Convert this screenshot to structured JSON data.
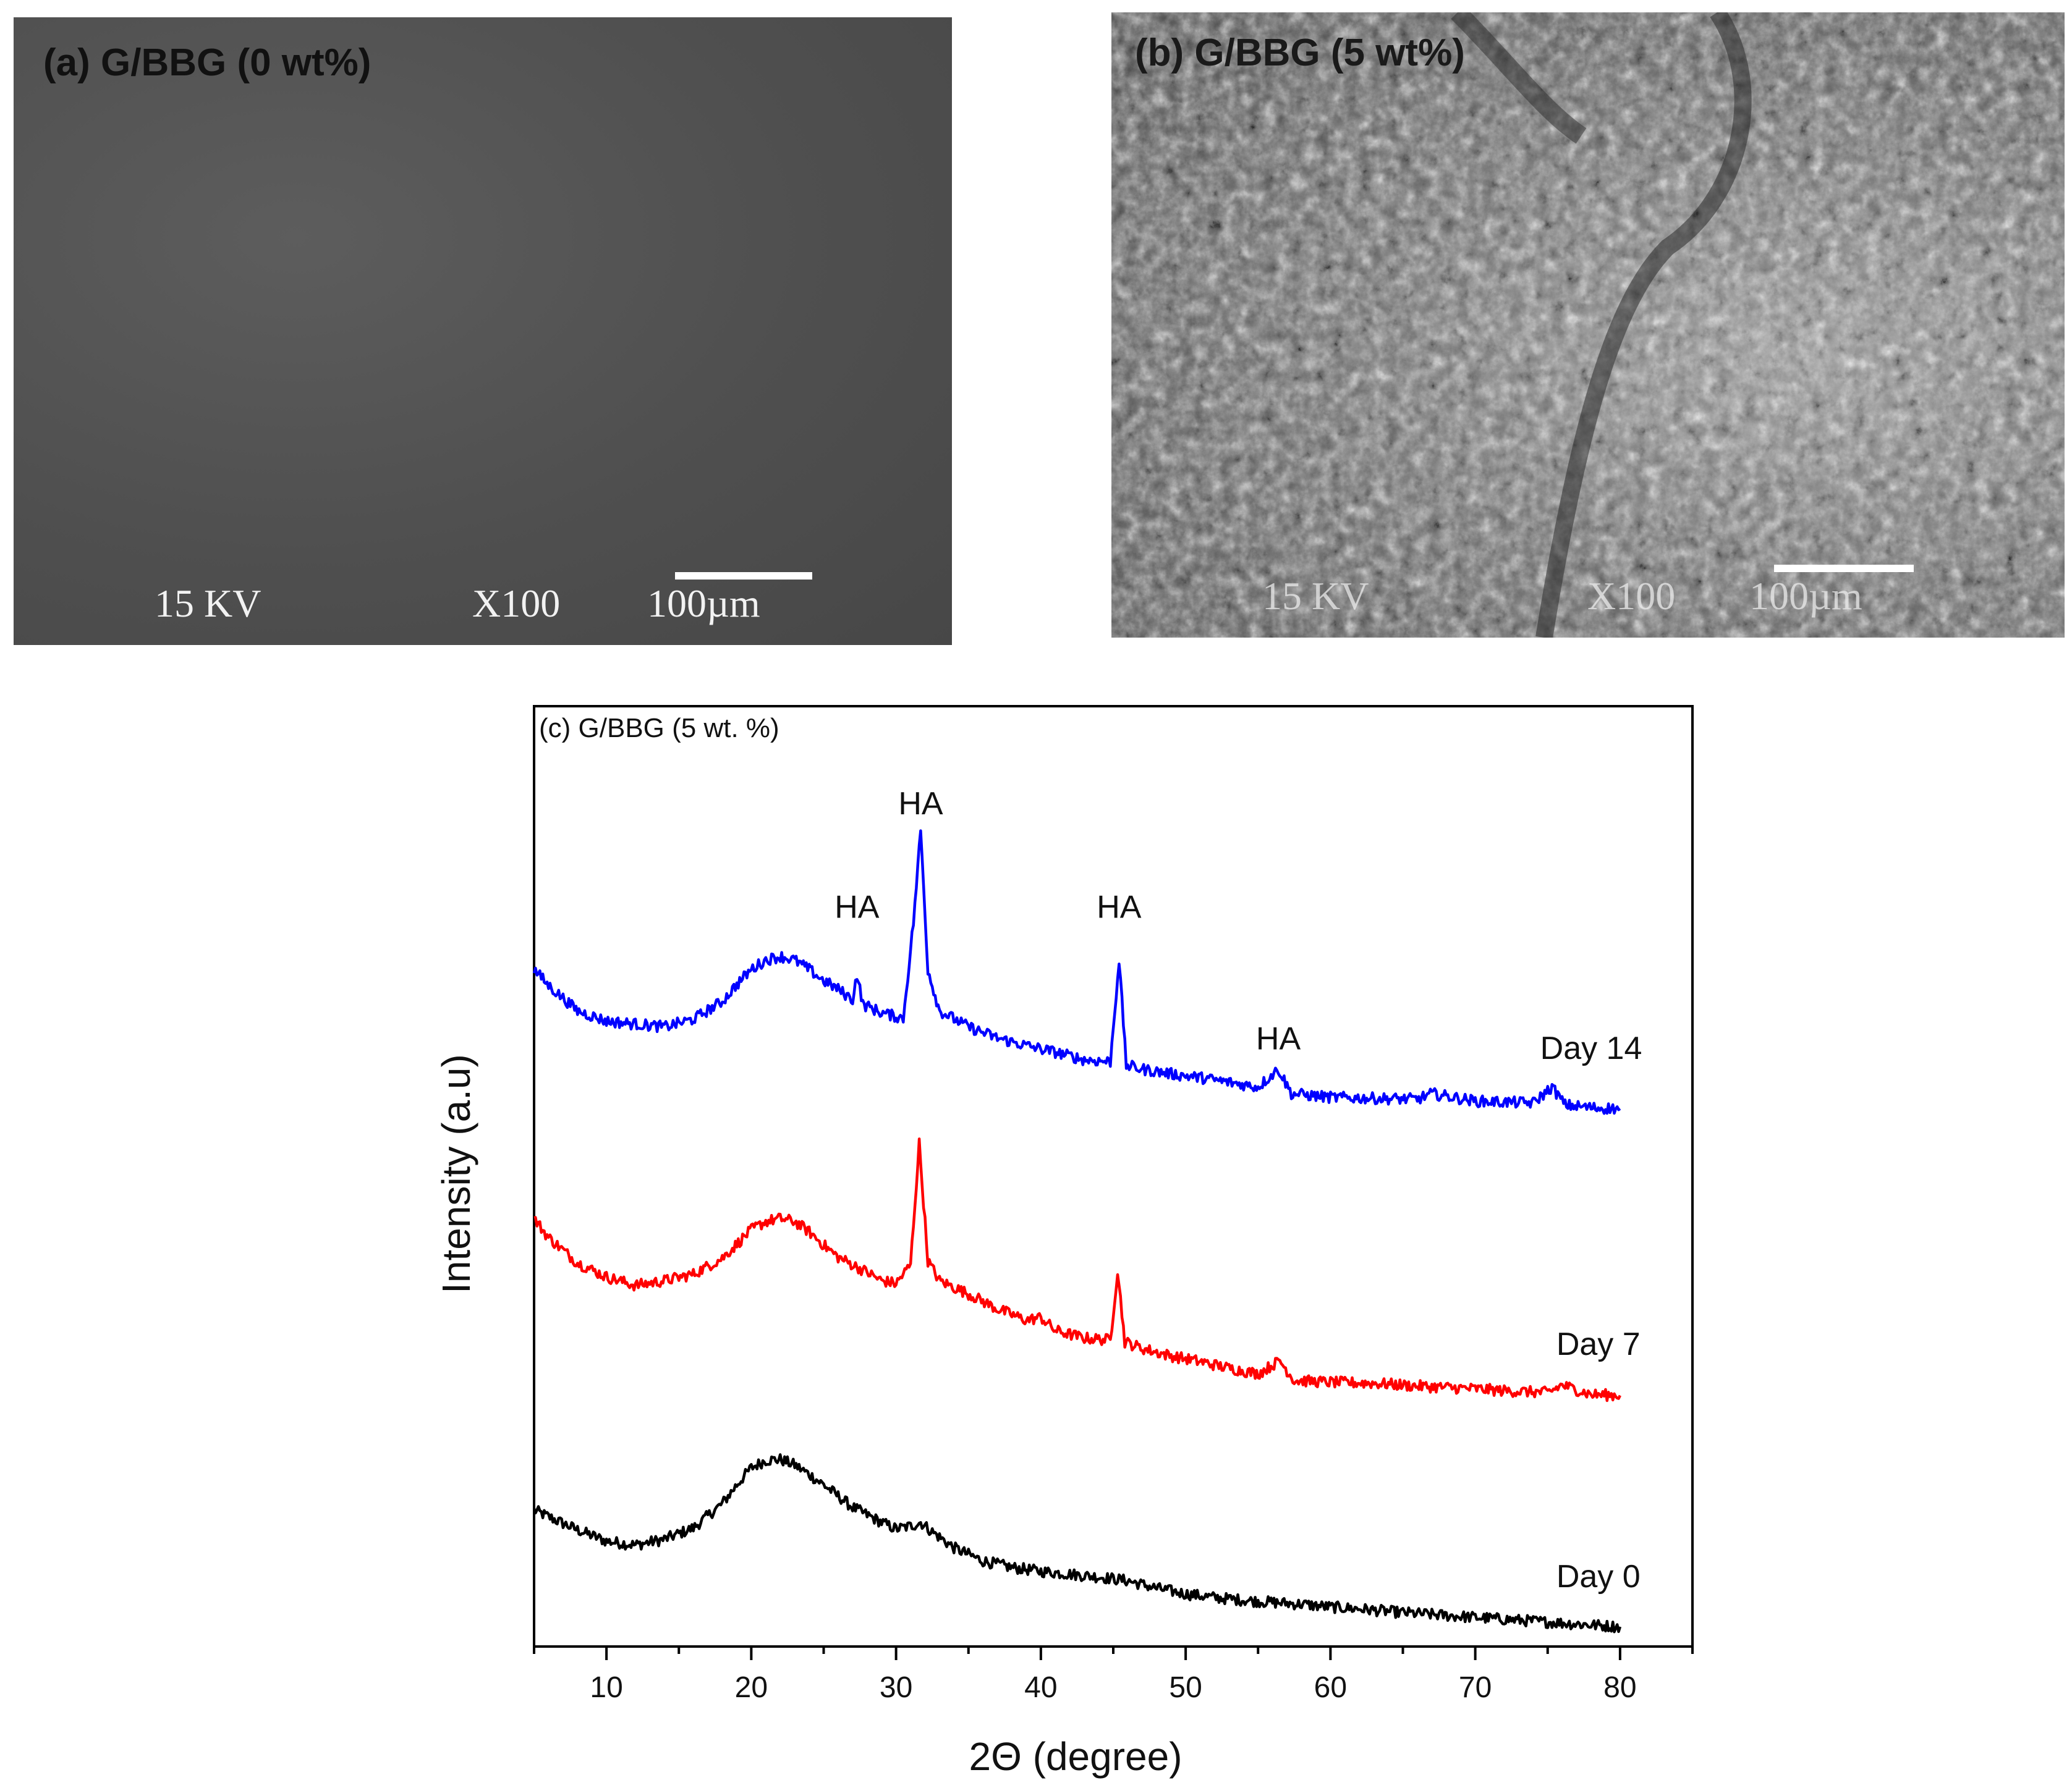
{
  "panel_a": {
    "title": "(a) G/BBG (0 wt%)",
    "voltage": "15 KV",
    "magnification": "X100",
    "scale": "100µm"
  },
  "panel_b": {
    "title": "(b) G/BBG (5 wt%)",
    "voltage": "15 KV",
    "magnification": "X100",
    "scale": "100µm"
  },
  "chart_data": {
    "type": "line",
    "title": "(c) G/BBG (5 wt. %)",
    "xlabel": "2Θ (degree)",
    "ylabel": "Intensity (a.u)",
    "xlim": [
      5,
      85
    ],
    "ylim": [
      0,
      100
    ],
    "xticks": [
      10,
      20,
      30,
      40,
      50,
      60,
      70,
      80
    ],
    "y_tick_labels_shown": false,
    "series": [
      {
        "name": "Day 0",
        "color": "#000000",
        "x": [
          5,
          6,
          8,
          10,
          12,
          14,
          16,
          18,
          19,
          20,
          21,
          22,
          23,
          24,
          25,
          26,
          27,
          28,
          29,
          30,
          31,
          31.7,
          32.5,
          34,
          36,
          38,
          40,
          42,
          44,
          46,
          48,
          50,
          52,
          55,
          58,
          60,
          62,
          65,
          68,
          70,
          72,
          75,
          78,
          80
        ],
        "y": [
          14.5,
          13.8,
          12.4,
          11.2,
          10.8,
          11.4,
          12.6,
          15.2,
          17.2,
          19.0,
          19.8,
          19.9,
          19.3,
          18.3,
          17.2,
          16.0,
          14.8,
          14.0,
          13.2,
          12.5,
          12.8,
          13.2,
          12.2,
          10.5,
          9.1,
          8.4,
          8.0,
          7.7,
          7.4,
          7.0,
          6.2,
          5.6,
          5.2,
          4.8,
          4.5,
          4.2,
          4.0,
          3.6,
          3.3,
          3.1,
          2.9,
          2.6,
          2.3,
          2.1
        ]
      },
      {
        "name": "Day 7",
        "color": "#ff0000",
        "x": [
          5,
          6,
          8,
          10,
          12,
          14,
          16,
          18,
          19,
          20,
          21,
          22,
          23,
          24,
          25,
          26,
          27,
          28,
          29,
          30,
          31,
          31.6,
          32.2,
          33,
          35,
          37,
          39,
          40,
          41,
          43,
          44.8,
          45.3,
          45.8,
          47,
          49,
          51,
          53,
          55,
          56.5,
          57.5,
          60,
          63,
          66,
          70,
          72,
          75,
          76,
          78,
          80
        ],
        "y": [
          45.5,
          43.5,
          40.8,
          39.3,
          38.4,
          38.9,
          39.6,
          41.3,
          42.8,
          44.3,
          45.2,
          45.5,
          45.2,
          44.1,
          42.7,
          41.4,
          40.6,
          39.8,
          38.9,
          38.6,
          40.6,
          53.5,
          41.0,
          38.9,
          37.5,
          35.9,
          34.7,
          35.0,
          33.6,
          32.8,
          32.6,
          40.0,
          32.4,
          31.7,
          30.9,
          30.3,
          29.6,
          29.0,
          30.4,
          28.3,
          28.1,
          28.0,
          27.7,
          27.4,
          27.2,
          27.0,
          27.8,
          26.8,
          26.7
        ]
      },
      {
        "name": "Day 14",
        "color": "#0000ff",
        "x": [
          5,
          6,
          8,
          10,
          12,
          14,
          16,
          18,
          19,
          20,
          21,
          22,
          23,
          24,
          25,
          26,
          27,
          27.3,
          27.7,
          29,
          30.5,
          31.2,
          31.7,
          32.2,
          33,
          35,
          37,
          39,
          41,
          43,
          44.8,
          45.4,
          45.9,
          47,
          49,
          51,
          53,
          55,
          56.4,
          57.3,
          60,
          63,
          66,
          67,
          70,
          72,
          74,
          75.3,
          76.2,
          78,
          80
        ],
        "y": [
          72.0,
          70.3,
          67.6,
          66.5,
          66.2,
          65.9,
          66.7,
          68.6,
          70.4,
          72.0,
          73.0,
          73.4,
          73.0,
          72.0,
          70.8,
          69.9,
          68.8,
          71.5,
          68.3,
          67.4,
          66.8,
          77.0,
          86.8,
          72.0,
          67.6,
          65.9,
          64.7,
          63.9,
          63.2,
          62.4,
          62.2,
          73.0,
          61.8,
          61.4,
          60.9,
          60.5,
          60.0,
          59.5,
          61.4,
          58.8,
          58.4,
          58.3,
          58.2,
          58.8,
          58.0,
          57.9,
          57.8,
          59.5,
          57.6,
          57.3,
          57.2
        ]
      }
    ],
    "annotations": [
      {
        "text": "HA",
        "x": 31.7,
        "y": 88.5
      },
      {
        "text": "HA",
        "x": 27.3,
        "y": 77.5
      },
      {
        "text": "HA",
        "x": 45.4,
        "y": 77.5
      },
      {
        "text": "HA",
        "x": 56.4,
        "y": 63.5
      }
    ],
    "series_labels": [
      {
        "text": "Day 14",
        "x": 78,
        "y": 62.5
      },
      {
        "text": "Day 7",
        "x": 78.5,
        "y": 31.0
      },
      {
        "text": "Day 0",
        "x": 78.5,
        "y": 6.3
      }
    ]
  }
}
